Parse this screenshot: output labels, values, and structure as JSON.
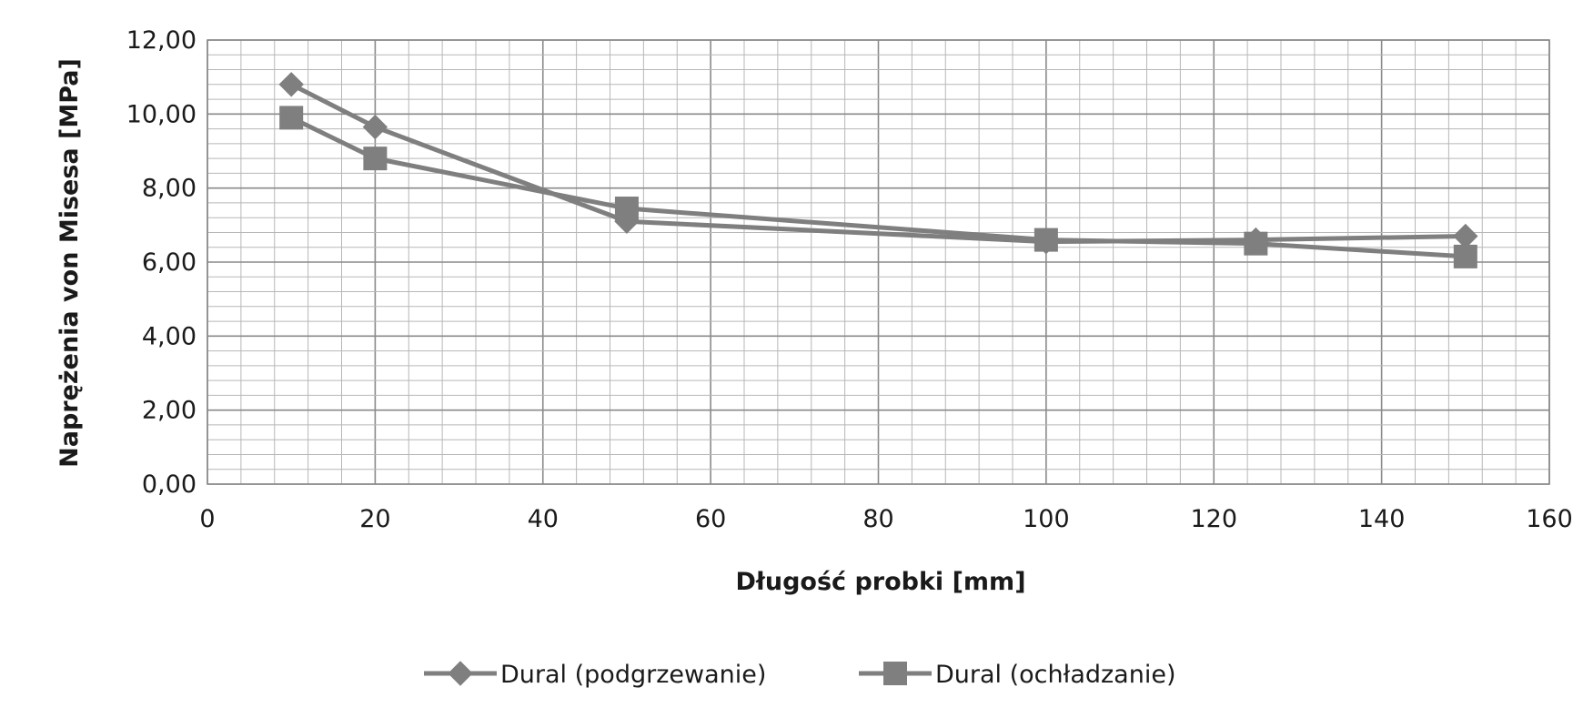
{
  "chart_data": {
    "type": "line",
    "xlabel": "Długość probki [mm]",
    "ylabel": "Naprężenia von Misesa [MPa]",
    "xlim": [
      0,
      160
    ],
    "ylim": [
      0,
      12
    ],
    "x_major_step": 20,
    "x_minor_step": 4,
    "y_major_step": 2,
    "y_minor_step": 0.4,
    "x_tick_labels": [
      "0",
      "20",
      "40",
      "60",
      "80",
      "100",
      "120",
      "140",
      "160"
    ],
    "y_tick_labels": [
      "0,00",
      "2,00",
      "4,00",
      "6,00",
      "8,00",
      "10,00",
      "12,00"
    ],
    "grid": true,
    "legend_position": "bottom",
    "series": [
      {
        "name": "Dural (podgrzewanie)",
        "marker": "diamond",
        "color": "#7f7f7f",
        "x": [
          10,
          20,
          50,
          100,
          125,
          150
        ],
        "values": [
          10.8,
          9.65,
          7.1,
          6.55,
          6.6,
          6.7
        ]
      },
      {
        "name": "Dural (ochładzanie)",
        "marker": "square",
        "color": "#7f7f7f",
        "x": [
          10,
          20,
          50,
          100,
          125,
          150
        ],
        "values": [
          9.9,
          8.8,
          7.45,
          6.6,
          6.5,
          6.15
        ]
      }
    ]
  }
}
